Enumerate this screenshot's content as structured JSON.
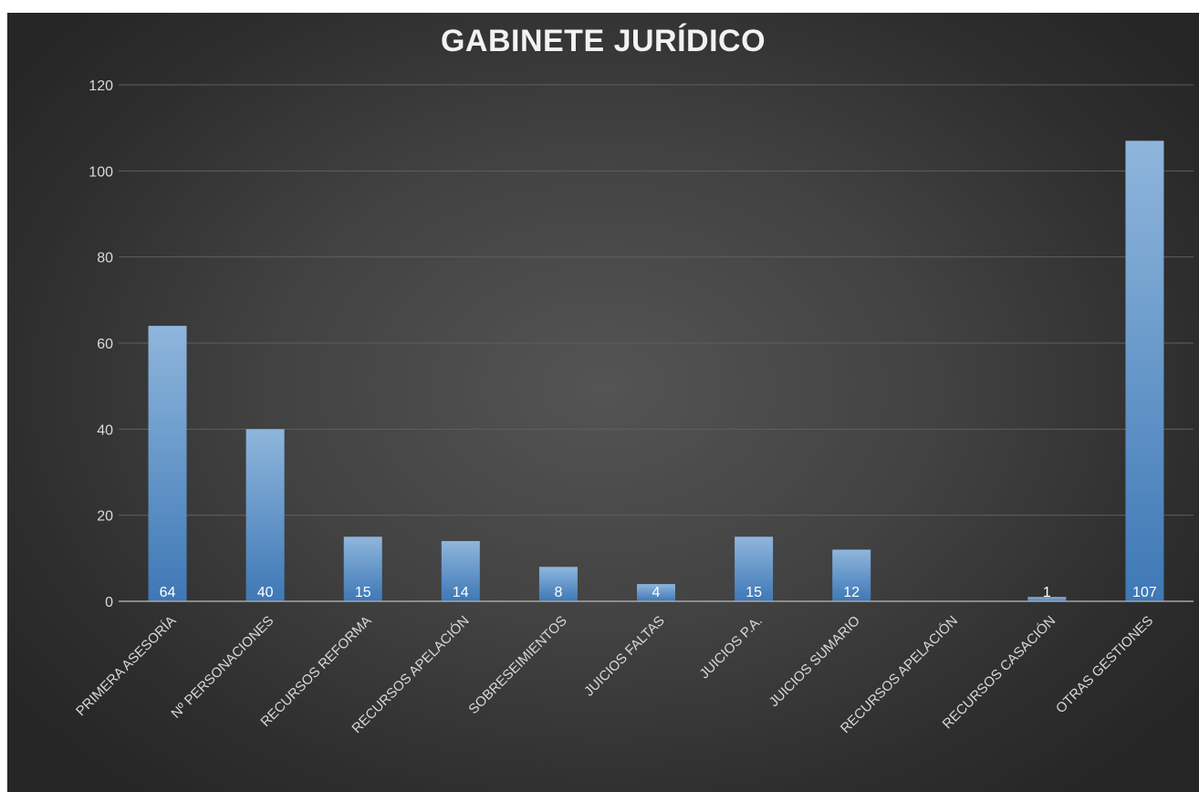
{
  "chart_data": {
    "type": "bar",
    "title": "GABINETE JURÍDICO",
    "categories": [
      "PRIMERA ASESORÍA",
      "Nº PERSONACIONES",
      "RECURSOS REFORMA",
      "RECURSOS APELACIÓN",
      "SOBRESEIMIENTOS",
      "JUICIOS FALTAS",
      "JUICIOS P.A.",
      "JUICIOS SUMARIO",
      "RECURSOS APELACIÓN",
      "RECURSOS CASACIÓN",
      "OTRAS GESTIONES"
    ],
    "values": [
      64,
      40,
      15,
      14,
      8,
      4,
      15,
      12,
      0,
      1,
      107
    ],
    "data_labels": [
      "64",
      "40",
      "15",
      "14",
      "8",
      "4",
      "15",
      "12",
      "",
      "1",
      "107"
    ],
    "ylim": [
      0,
      120
    ],
    "yticks": [
      0,
      20,
      40,
      60,
      80,
      100,
      120
    ],
    "grid": true,
    "legend": "none",
    "colors": {
      "bar_top": "#8fb6dc",
      "bar_bottom": "#3e78b6",
      "grid": "#5f5f5f",
      "axis": "#a6a6a6",
      "text": "#d9d9d9"
    }
  }
}
